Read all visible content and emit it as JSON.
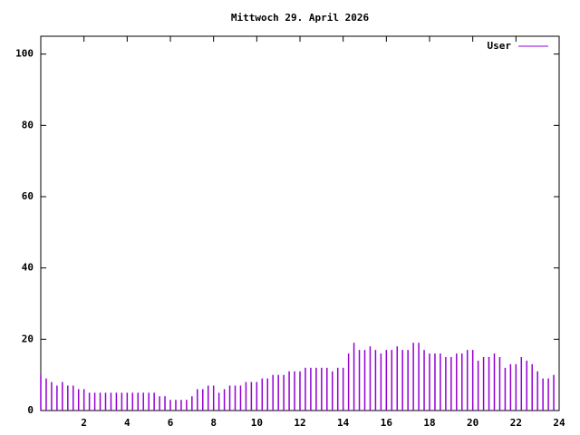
{
  "chart_data": {
    "type": "impulse",
    "title": "Mittwoch 29. April 2026",
    "x": [
      0,
      0.25,
      0.5,
      0.75,
      1,
      1.25,
      1.5,
      1.75,
      2,
      2.25,
      2.5,
      2.75,
      3,
      3.25,
      3.5,
      3.75,
      4,
      4.25,
      4.5,
      4.75,
      5,
      5.25,
      5.5,
      5.75,
      6,
      6.25,
      6.5,
      6.75,
      7,
      7.25,
      7.5,
      7.75,
      8,
      8.25,
      8.5,
      8.75,
      9,
      9.25,
      9.5,
      9.75,
      10,
      10.25,
      10.5,
      10.75,
      11,
      11.25,
      11.5,
      11.75,
      12,
      12.25,
      12.5,
      12.75,
      13,
      13.25,
      13.5,
      13.75,
      14,
      14.25,
      14.5,
      14.75,
      15,
      15.25,
      15.5,
      15.75,
      16,
      16.25,
      16.5,
      16.75,
      17,
      17.25,
      17.5,
      17.75,
      18,
      18.25,
      18.5,
      18.75,
      19,
      19.25,
      19.5,
      19.75,
      20,
      20.25,
      20.5,
      20.75,
      21,
      21.25,
      21.5,
      21.75,
      22,
      22.25,
      22.5,
      22.75,
      23,
      23.25,
      23.5,
      23.75
    ],
    "series": [
      {
        "name": "User",
        "color": "#9400d3",
        "values": [
          10,
          9,
          8,
          7,
          8,
          7,
          7,
          6,
          6,
          5,
          5,
          5,
          5,
          5,
          5,
          5,
          5,
          5,
          5,
          5,
          5,
          5,
          4,
          4,
          3,
          3,
          3,
          3,
          4,
          6,
          6,
          7,
          7,
          5,
          6,
          7,
          7,
          7,
          8,
          8,
          8,
          9,
          9,
          10,
          10,
          10,
          11,
          11,
          11,
          12,
          12,
          12,
          12,
          12,
          11,
          12,
          12,
          16,
          19,
          17,
          17,
          18,
          17,
          16,
          17,
          17,
          18,
          17,
          17,
          19,
          19,
          17,
          16,
          16,
          16,
          15,
          15,
          16,
          16,
          17,
          17,
          14,
          15,
          15,
          16,
          15,
          12,
          13,
          13,
          15,
          14,
          13,
          11,
          9,
          9,
          10
        ]
      }
    ],
    "xlim": [
      0,
      24
    ],
    "xticks": [
      2,
      4,
      6,
      8,
      10,
      12,
      14,
      16,
      18,
      20,
      22,
      24
    ],
    "ylim": [
      0,
      105
    ],
    "yticks": [
      0,
      20,
      40,
      60,
      80,
      100
    ],
    "legend": "top-right"
  }
}
